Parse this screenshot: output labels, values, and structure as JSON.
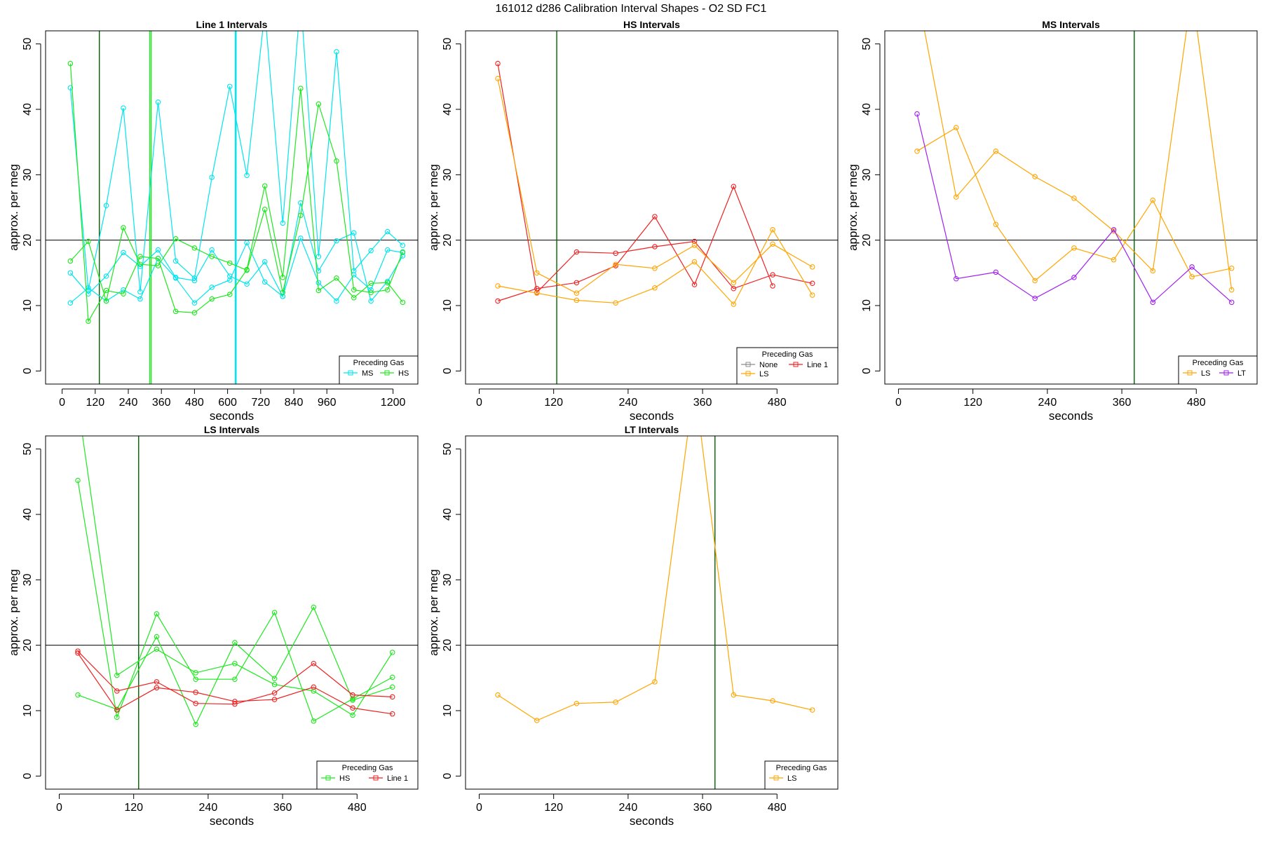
{
  "figure_title": "161012   d286   Calibration Interval Shapes - O2 SD FC1",
  "colors": {
    "MS": "#00e5ee",
    "HS": "#1ee81e",
    "LS": "#ffa500",
    "Line 1": "#ee2222",
    "LT": "#a020f0",
    "None": "#8c8c8c",
    "refline": "#000000",
    "marker": "#006400"
  },
  "chart_data": [
    {
      "type": "line",
      "title": "Line 1 Intervals",
      "xlabel": "seconds",
      "ylabel": "approx. per meg",
      "xlim": [
        -60,
        1290
      ],
      "ylim": [
        -2,
        52
      ],
      "xticks": [
        0,
        120,
        240,
        360,
        480,
        600,
        720,
        840,
        960,
        1200
      ],
      "xtick_labels": [
        "0",
        "120",
        "240",
        "360",
        "480",
        "600",
        "720",
        "840",
        "960",
        "1200"
      ],
      "yticks": [
        0,
        10,
        20,
        30,
        40,
        50
      ],
      "ytick_labels": [
        "0",
        "10",
        "20",
        "30",
        "40",
        "50"
      ],
      "hline": 20,
      "vlines": [
        {
          "x": 135,
          "color": "#006400"
        },
        {
          "x": 318,
          "color": "#1ee81e"
        },
        {
          "x": 323,
          "color": "#1ee81e"
        },
        {
          "x": 628,
          "color": "#00e5ee"
        },
        {
          "x": 631,
          "color": "#00e5ee"
        }
      ],
      "legend": {
        "title": "Preceding Gas",
        "entries": [
          "MS",
          "HS"
        ]
      },
      "series": [
        {
          "name": "MS",
          "x": [
            30,
            95,
            160,
            222,
            283,
            348,
            412,
            480,
            543,
            608,
            670,
            735,
            800,
            865,
            930,
            995,
            1058,
            1120,
            1180,
            1235
          ],
          "y": [
            43.3,
            12.4,
            25.3,
            40.2,
            12.1,
            41.1,
            16.8,
            14.2,
            29.6,
            43.5,
            29.9,
            55,
            22.6,
            57,
            17.5,
            48.8,
            15.3,
            18.4,
            21.3,
            19.2
          ]
        },
        {
          "name": "MS",
          "x": [
            30,
            95,
            160,
            222,
            283,
            348,
            412,
            480,
            543,
            608,
            670,
            735,
            800,
            865,
            930,
            995,
            1058,
            1120,
            1180,
            1235
          ],
          "y": [
            15,
            11.8,
            14.5,
            18.1,
            16,
            18.5,
            14.3,
            13.8,
            18.5,
            14.5,
            13.3,
            16.7,
            11.4,
            20.3,
            13.5,
            10.7,
            14.7,
            12.4,
            18.5,
            18.1
          ]
        },
        {
          "name": "MS",
          "x": [
            30,
            95,
            160,
            222,
            283,
            348,
            412,
            480,
            543,
            608,
            670,
            735,
            800,
            865,
            930,
            995,
            1058,
            1120,
            1180,
            1235
          ],
          "y": [
            10.4,
            12.7,
            10.7,
            12.4,
            11,
            17.2,
            14.2,
            10.4,
            12.8,
            13.9,
            19.6,
            13.6,
            11.4,
            25.7,
            15.3,
            19.9,
            21.1,
            10.7,
            13.7,
            17.6
          ]
        },
        {
          "name": "HS",
          "x": [
            30,
            95,
            160,
            222,
            283,
            348,
            412,
            480,
            543,
            608,
            670,
            735,
            800,
            865,
            930,
            995,
            1058,
            1120,
            1180,
            1235
          ],
          "y": [
            47,
            7.6,
            12.3,
            11.8,
            17.5,
            17.2,
            9.1,
            8.9,
            11,
            11.7,
            15.5,
            28.3,
            14.3,
            43.2,
            12.3,
            14.2,
            11.2,
            13.4,
            13.5,
            10.5
          ]
        },
        {
          "name": "HS",
          "x": [
            30,
            95,
            160,
            222,
            283,
            348,
            412,
            480,
            543,
            608,
            670,
            735,
            800,
            865,
            930,
            995,
            1058,
            1120,
            1180,
            1235
          ],
          "y": [
            16.8,
            19.8,
            10.7,
            21.9,
            16.3,
            16.1,
            20.2,
            18.8,
            17.5,
            16.5,
            15.4,
            24.7,
            12,
            23.8,
            40.8,
            32.1,
            12.4,
            12,
            12.4,
            18.2
          ]
        }
      ]
    },
    {
      "type": "line",
      "title": "HS Intervals",
      "xlabel": "seconds",
      "ylabel": "approx. per meg",
      "xlim": [
        -22,
        578
      ],
      "ylim": [
        -2,
        52
      ],
      "xticks": [
        0,
        120,
        240,
        360,
        480
      ],
      "xtick_labels": [
        "0",
        "120",
        "240",
        "360",
        "480"
      ],
      "yticks": [
        0,
        10,
        20,
        30,
        40,
        50
      ],
      "ytick_labels": [
        "0",
        "10",
        "20",
        "30",
        "40",
        "50"
      ],
      "hline": 20,
      "vlines": [
        {
          "x": 125,
          "color": "#006400"
        }
      ],
      "legend": {
        "title": "Preceding Gas",
        "entries": [
          "None",
          "Line 1",
          "LS"
        ]
      },
      "series": [
        {
          "name": "Line 1",
          "x": [
            30,
            93,
            157,
            220,
            283,
            347,
            410,
            473,
            537
          ],
          "y": [
            47,
            12,
            18.2,
            18,
            19,
            19.8,
            12.6,
            14.7,
            13.4
          ]
        },
        {
          "name": "Line 1",
          "x": [
            30,
            93,
            157,
            220,
            283,
            347,
            410,
            473,
            537
          ],
          "y": [
            10.7,
            12.6,
            13.5,
            16.1,
            23.6,
            13.2,
            28.2,
            13,
            null
          ]
        },
        {
          "name": "LS",
          "x": [
            30,
            93,
            157,
            220,
            283,
            347,
            410,
            473,
            537
          ],
          "y": [
            44.7,
            15,
            11.9,
            16.3,
            15.7,
            19.2,
            13.5,
            19.4,
            15.9
          ]
        },
        {
          "name": "LS",
          "x": [
            30,
            93,
            157,
            220,
            283,
            347,
            410,
            473,
            537
          ],
          "y": [
            13,
            11.9,
            10.8,
            10.4,
            12.7,
            16.7,
            10.2,
            21.6,
            11.6
          ]
        }
      ]
    },
    {
      "type": "line",
      "title": "MS Intervals",
      "xlabel": "seconds",
      "ylabel": "approx. per meg",
      "xlim": [
        -22,
        578
      ],
      "ylim": [
        -2,
        52
      ],
      "xticks": [
        0,
        120,
        240,
        360,
        480
      ],
      "xtick_labels": [
        "0",
        "120",
        "240",
        "360",
        "480"
      ],
      "yticks": [
        0,
        10,
        20,
        30,
        40,
        50
      ],
      "ytick_labels": [
        "0",
        "10",
        "20",
        "30",
        "40",
        "50"
      ],
      "hline": 20,
      "vlines": [
        {
          "x": 380,
          "color": "#006400"
        }
      ],
      "legend": {
        "title": "Preceding Gas",
        "entries": [
          "LS",
          "LT"
        ]
      },
      "series": [
        {
          "name": "LS",
          "x": [
            30,
            93,
            157,
            220,
            283,
            347,
            410,
            473,
            537
          ],
          "y": [
            58,
            26.6,
            33.6,
            29.7,
            26.4,
            21.4,
            15.3,
            58,
            12.4
          ]
        },
        {
          "name": "LS",
          "x": [
            30,
            93,
            157,
            220,
            283,
            347,
            410,
            473,
            537
          ],
          "y": [
            33.6,
            37.2,
            22.4,
            13.8,
            18.8,
            17,
            26.1,
            14.4,
            15.7
          ]
        },
        {
          "name": "LT",
          "x": [
            30,
            93,
            157,
            220,
            283,
            347,
            410,
            473,
            537
          ],
          "y": [
            39.3,
            14.1,
            15.1,
            11.1,
            14.3,
            21.6,
            10.5,
            15.9,
            10.5
          ]
        }
      ]
    },
    {
      "type": "line",
      "title": "LS Intervals",
      "xlabel": "seconds",
      "ylabel": "approx. per meg",
      "xlim": [
        -22,
        578
      ],
      "ylim": [
        -2,
        52
      ],
      "xticks": [
        0,
        120,
        240,
        360,
        480
      ],
      "xtick_labels": [
        "0",
        "120",
        "240",
        "360",
        "480"
      ],
      "yticks": [
        0,
        10,
        20,
        30,
        40,
        50
      ],
      "ytick_labels": [
        "0",
        "10",
        "20",
        "30",
        "40",
        "50"
      ],
      "hline": 20,
      "vlines": [
        {
          "x": 128,
          "color": "#006400"
        }
      ],
      "legend": {
        "title": "Preceding Gas",
        "entries": [
          "HS",
          "Line 1"
        ]
      },
      "series": [
        {
          "name": "HS",
          "x": [
            30,
            93,
            157,
            220,
            283,
            347,
            410,
            473,
            537
          ],
          "y": [
            45.2,
            9,
            24.8,
            14.8,
            14.8,
            25,
            8.4,
            11.8,
            15.1
          ]
        },
        {
          "name": "HS",
          "x": [
            30,
            93,
            157,
            220,
            283,
            347,
            410,
            473,
            537
          ],
          "y": [
            57,
            15.4,
            19.4,
            15.8,
            17.2,
            14,
            13,
            9.3,
            18.9
          ]
        },
        {
          "name": "HS",
          "x": [
            30,
            93,
            157,
            220,
            283,
            347,
            410,
            473,
            537
          ],
          "y": [
            12.4,
            10.2,
            21.3,
            7.9,
            20.4,
            14.9,
            25.8,
            11.6,
            13.6
          ]
        },
        {
          "name": "Line 1",
          "x": [
            30,
            93,
            157,
            220,
            283,
            347,
            410,
            473,
            537
          ],
          "y": [
            19.1,
            13,
            14.4,
            11.1,
            11,
            12.7,
            17.2,
            12.4,
            12.1
          ]
        },
        {
          "name": "Line 1",
          "x": [
            30,
            93,
            157,
            220,
            283,
            347,
            410,
            473,
            537
          ],
          "y": [
            18.8,
            10.1,
            13.5,
            12.8,
            11.4,
            11.7,
            13.6,
            10.4,
            9.5
          ]
        }
      ]
    },
    {
      "type": "line",
      "title": "LT Intervals",
      "xlabel": "seconds",
      "ylabel": "approx. per meg",
      "xlim": [
        -22,
        578
      ],
      "ylim": [
        -2,
        52
      ],
      "xticks": [
        0,
        120,
        240,
        360,
        480
      ],
      "xtick_labels": [
        "0",
        "120",
        "240",
        "360",
        "480"
      ],
      "yticks": [
        0,
        10,
        20,
        30,
        40,
        50
      ],
      "ytick_labels": [
        "0",
        "10",
        "20",
        "30",
        "40",
        "50"
      ],
      "hline": 20,
      "vlines": [
        {
          "x": 380,
          "color": "#006400"
        }
      ],
      "legend": {
        "title": "Preceding Gas",
        "entries": [
          "LS"
        ]
      },
      "series": [
        {
          "name": "LS",
          "x": [
            30,
            93,
            157,
            220,
            283,
            347,
            410,
            473,
            537
          ],
          "y": [
            12.4,
            8.5,
            11.1,
            11.3,
            14.4,
            60,
            12.4,
            11.5,
            10.1
          ]
        }
      ]
    }
  ]
}
